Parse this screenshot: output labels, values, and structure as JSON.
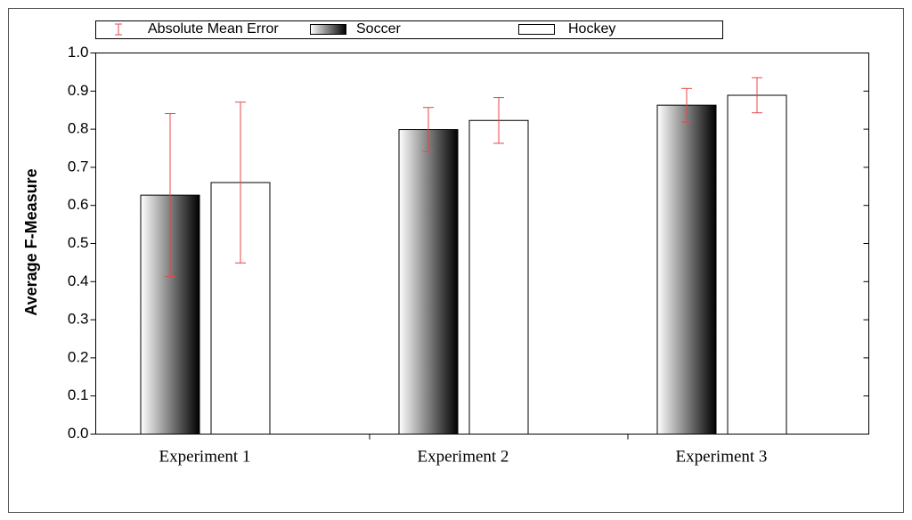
{
  "chart_data": {
    "type": "bar",
    "y_label": "Average F-Measure",
    "categories": [
      "Experiment 1",
      "Experiment 2",
      "Experiment 3"
    ],
    "error_label": "Absolute Mean Error",
    "error_color": "#e8474a",
    "series": [
      {
        "name": "Soccer",
        "color": "#000000",
        "gradient": true,
        "values": [
          0.627,
          0.799,
          0.863
        ],
        "errors": [
          0.214,
          0.058,
          0.044
        ]
      },
      {
        "name": "Hockey",
        "color": "#ffffff",
        "gradient": false,
        "values": [
          0.66,
          0.823,
          0.889
        ],
        "errors": [
          0.211,
          0.06,
          0.046
        ]
      }
    ],
    "ylim": [
      0,
      1
    ],
    "yticks": [
      {
        "value": 0,
        "label": "0.0"
      },
      0.1,
      0.2,
      0.3,
      0.4,
      0.5,
      0.6,
      0.7,
      0.8,
      0.9,
      {
        "value": 1,
        "label": "1.0"
      }
    ],
    "grid": false
  }
}
